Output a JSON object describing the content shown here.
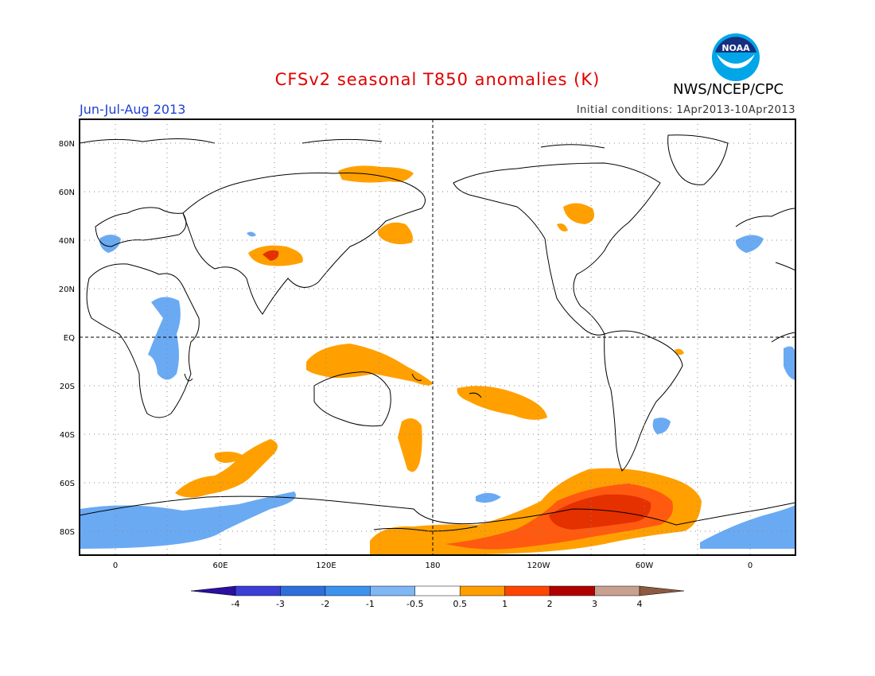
{
  "header": {
    "title": "CFSv2 seasonal T850 anomalies (K)",
    "period": "Jun-Jul-Aug 2013",
    "initial_conditions": "Initial conditions: 1Apr2013-10Apr2013",
    "agency": "NWS/NCEP/CPC",
    "logo_text": "NOAA"
  },
  "map": {
    "projection": "cylindrical, Greenwich-centered then date line center",
    "lat_labels": [
      "80N",
      "60N",
      "40N",
      "20N",
      "EQ",
      "20S",
      "40S",
      "60S",
      "80S"
    ],
    "lon_labels": [
      "0",
      "60E",
      "120E",
      "180",
      "120W",
      "60W",
      "0"
    ]
  },
  "colorbar": {
    "labels": [
      "-4",
      "-3",
      "-2",
      "-1",
      "-0.5",
      "0.5",
      "1",
      "2",
      "3",
      "4"
    ],
    "colors": [
      "#2a0fa0",
      "#3a3ed4",
      "#2f6fdc",
      "#3c93ee",
      "#7fb7f5",
      "#ffffff",
      "#ff9e00",
      "#ff4500",
      "#b00000",
      "#c8a090",
      "#8b5a40"
    ]
  },
  "colors": {
    "cool": "#66a8f2",
    "warm1": "#ffa000",
    "warm2": "#ff5a10",
    "warm3": "#e53000"
  }
}
